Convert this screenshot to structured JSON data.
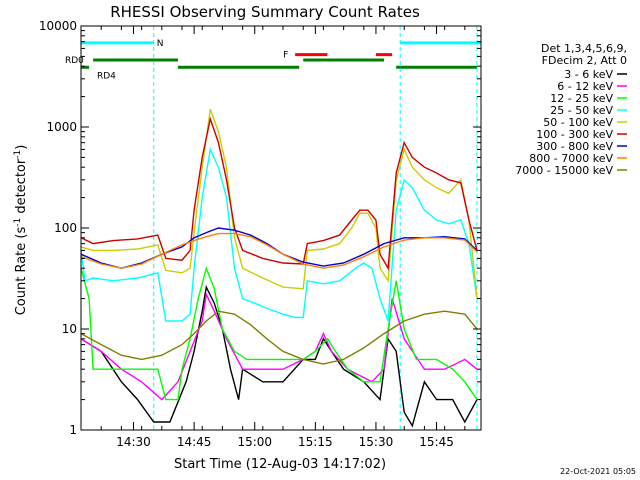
{
  "chart_data": {
    "type": "line",
    "title": "RHESSI Observing Summary Count Rates",
    "xlabel": "Start Time (12-Aug-03 14:17:02)",
    "ylabel": "Count Rate (s",
    "ylabel_sup": "-1",
    "ylabel_mid": " detector",
    "ylabel_end": ")",
    "y_scale": "log",
    "ylim": [
      1,
      10000
    ],
    "xlim_minutes": [
      0,
      99
    ],
    "x_ticks": [
      {
        "m": 13,
        "label": "14:30"
      },
      {
        "m": 28,
        "label": "14:45"
      },
      {
        "m": 43,
        "label": "15:00"
      },
      {
        "m": 58,
        "label": "15:15"
      },
      {
        "m": 73,
        "label": "15:30"
      },
      {
        "m": 88,
        "label": "15:45"
      }
    ],
    "y_ticks": [
      {
        "v": 1,
        "label": "1"
      },
      {
        "v": 10,
        "label": "10"
      },
      {
        "v": 100,
        "label": "100"
      },
      {
        "v": 1000,
        "label": "1000"
      },
      {
        "v": 10000,
        "label": "10000"
      }
    ],
    "legend_header": [
      "Det 1,3,4,5,6,9,",
      "FDecim 2, Att 0"
    ],
    "legend_position": "right",
    "series": [
      {
        "name": "3 - 6 keV",
        "color": "#000000",
        "points": [
          [
            0,
            8
          ],
          [
            5,
            6
          ],
          [
            10,
            3
          ],
          [
            14,
            2
          ],
          [
            18,
            1.2
          ],
          [
            22,
            1.2
          ],
          [
            26,
            3
          ],
          [
            28,
            6
          ],
          [
            30,
            15
          ],
          [
            31,
            26
          ],
          [
            33,
            18
          ],
          [
            35,
            10
          ],
          [
            37,
            4
          ],
          [
            39,
            2
          ],
          [
            40,
            4
          ],
          [
            45,
            3
          ],
          [
            50,
            3
          ],
          [
            55,
            5
          ],
          [
            58,
            5
          ],
          [
            60,
            8
          ],
          [
            62,
            6
          ],
          [
            65,
            4
          ],
          [
            70,
            3
          ],
          [
            74,
            2
          ],
          [
            76,
            8
          ],
          [
            78,
            6
          ],
          [
            80,
            1.5
          ],
          [
            82,
            1.1
          ],
          [
            85,
            3
          ],
          [
            88,
            2
          ],
          [
            92,
            2
          ],
          [
            95,
            1.2
          ],
          [
            98,
            2
          ]
        ]
      },
      {
        "name": "6 - 12 keV",
        "color": "#ff00ff",
        "points": [
          [
            0,
            8
          ],
          [
            5,
            6
          ],
          [
            10,
            4
          ],
          [
            15,
            3
          ],
          [
            20,
            2
          ],
          [
            24,
            3
          ],
          [
            27,
            6
          ],
          [
            30,
            12
          ],
          [
            31,
            22
          ],
          [
            33,
            15
          ],
          [
            36,
            8
          ],
          [
            40,
            4
          ],
          [
            45,
            4
          ],
          [
            50,
            4
          ],
          [
            55,
            5
          ],
          [
            58,
            6
          ],
          [
            60,
            9
          ],
          [
            62,
            6
          ],
          [
            66,
            4
          ],
          [
            72,
            3
          ],
          [
            75,
            4
          ],
          [
            77,
            20
          ],
          [
            80,
            8
          ],
          [
            85,
            4
          ],
          [
            90,
            4
          ],
          [
            95,
            5
          ],
          [
            98,
            4
          ]
        ]
      },
      {
        "name": "12 - 25 keV",
        "color": "#00ff00",
        "points": [
          [
            0,
            40
          ],
          [
            2,
            20
          ],
          [
            3,
            4
          ],
          [
            10,
            4
          ],
          [
            15,
            4
          ],
          [
            19,
            4
          ],
          [
            21,
            2
          ],
          [
            24,
            2
          ],
          [
            25,
            4
          ],
          [
            27,
            8
          ],
          [
            29,
            20
          ],
          [
            31,
            40
          ],
          [
            33,
            25
          ],
          [
            35,
            10
          ],
          [
            38,
            6
          ],
          [
            41,
            5
          ],
          [
            45,
            5
          ],
          [
            50,
            5
          ],
          [
            55,
            5
          ],
          [
            58,
            6
          ],
          [
            61,
            8
          ],
          [
            63,
            6
          ],
          [
            66,
            4
          ],
          [
            70,
            3
          ],
          [
            74,
            3
          ],
          [
            76,
            10
          ],
          [
            78,
            30
          ],
          [
            80,
            10
          ],
          [
            83,
            5
          ],
          [
            88,
            5
          ],
          [
            92,
            4
          ],
          [
            95,
            3
          ],
          [
            98,
            2
          ]
        ]
      },
      {
        "name": "25 - 50 keV",
        "color": "#00ffff",
        "points": [
          [
            0,
            60
          ],
          [
            1,
            30
          ],
          [
            3,
            32
          ],
          [
            8,
            30
          ],
          [
            14,
            32
          ],
          [
            19,
            36
          ],
          [
            21,
            12
          ],
          [
            25,
            12
          ],
          [
            27,
            14
          ],
          [
            28,
            40
          ],
          [
            30,
            200
          ],
          [
            32,
            600
          ],
          [
            34,
            400
          ],
          [
            36,
            200
          ],
          [
            38,
            40
          ],
          [
            40,
            20
          ],
          [
            43,
            18
          ],
          [
            46,
            16
          ],
          [
            50,
            14
          ],
          [
            53,
            13
          ],
          [
            55,
            13
          ],
          [
            56,
            30
          ],
          [
            60,
            28
          ],
          [
            64,
            30
          ],
          [
            68,
            40
          ],
          [
            70,
            45
          ],
          [
            72,
            40
          ],
          [
            74,
            20
          ],
          [
            76,
            12
          ],
          [
            78,
            150
          ],
          [
            80,
            300
          ],
          [
            82,
            250
          ],
          [
            85,
            150
          ],
          [
            88,
            120
          ],
          [
            91,
            110
          ],
          [
            94,
            120
          ],
          [
            96,
            70
          ],
          [
            98,
            20
          ]
        ]
      },
      {
        "name": "50 - 100 keV",
        "color": "#cccc00",
        "points": [
          [
            0,
            65
          ],
          [
            3,
            60
          ],
          [
            8,
            60
          ],
          [
            14,
            62
          ],
          [
            19,
            68
          ],
          [
            21,
            38
          ],
          [
            25,
            36
          ],
          [
            27,
            40
          ],
          [
            28,
            90
          ],
          [
            30,
            400
          ],
          [
            32,
            1500
          ],
          [
            34,
            900
          ],
          [
            36,
            400
          ],
          [
            38,
            80
          ],
          [
            40,
            40
          ],
          [
            45,
            32
          ],
          [
            50,
            26
          ],
          [
            55,
            25
          ],
          [
            56,
            60
          ],
          [
            60,
            62
          ],
          [
            64,
            70
          ],
          [
            67,
            100
          ],
          [
            69,
            140
          ],
          [
            71,
            140
          ],
          [
            73,
            100
          ],
          [
            74,
            40
          ],
          [
            76,
            30
          ],
          [
            78,
            300
          ],
          [
            80,
            600
          ],
          [
            82,
            400
          ],
          [
            85,
            300
          ],
          [
            88,
            250
          ],
          [
            91,
            220
          ],
          [
            94,
            300
          ],
          [
            96,
            120
          ],
          [
            98,
            20
          ]
        ]
      },
      {
        "name": "100 - 300 keV",
        "color": "#cc0000",
        "points": [
          [
            0,
            80
          ],
          [
            3,
            70
          ],
          [
            8,
            75
          ],
          [
            14,
            78
          ],
          [
            19,
            85
          ],
          [
            21,
            50
          ],
          [
            25,
            48
          ],
          [
            27,
            60
          ],
          [
            28,
            150
          ],
          [
            30,
            500
          ],
          [
            32,
            1200
          ],
          [
            34,
            700
          ],
          [
            36,
            300
          ],
          [
            38,
            100
          ],
          [
            40,
            60
          ],
          [
            45,
            50
          ],
          [
            50,
            45
          ],
          [
            55,
            44
          ],
          [
            56,
            70
          ],
          [
            60,
            75
          ],
          [
            64,
            85
          ],
          [
            67,
            120
          ],
          [
            69,
            150
          ],
          [
            71,
            150
          ],
          [
            73,
            120
          ],
          [
            74,
            55
          ],
          [
            76,
            40
          ],
          [
            78,
            350
          ],
          [
            80,
            700
          ],
          [
            82,
            500
          ],
          [
            85,
            400
          ],
          [
            88,
            350
          ],
          [
            91,
            300
          ],
          [
            94,
            280
          ],
          [
            96,
            120
          ],
          [
            98,
            60
          ]
        ]
      },
      {
        "name": "300 - 800 keV",
        "color": "#0000cc",
        "points": [
          [
            0,
            55
          ],
          [
            5,
            45
          ],
          [
            10,
            40
          ],
          [
            15,
            45
          ],
          [
            20,
            55
          ],
          [
            25,
            65
          ],
          [
            28,
            80
          ],
          [
            31,
            90
          ],
          [
            34,
            100
          ],
          [
            38,
            95
          ],
          [
            42,
            85
          ],
          [
            46,
            70
          ],
          [
            50,
            55
          ],
          [
            55,
            46
          ],
          [
            60,
            42
          ],
          [
            65,
            45
          ],
          [
            70,
            55
          ],
          [
            75,
            70
          ],
          [
            80,
            80
          ],
          [
            85,
            80
          ],
          [
            90,
            82
          ],
          [
            95,
            78
          ],
          [
            98,
            60
          ]
        ]
      },
      {
        "name": "800 - 7000 keV",
        "color": "#ff8000",
        "points": [
          [
            0,
            52
          ],
          [
            5,
            44
          ],
          [
            10,
            40
          ],
          [
            15,
            44
          ],
          [
            20,
            55
          ],
          [
            25,
            68
          ],
          [
            28,
            75
          ],
          [
            31,
            82
          ],
          [
            34,
            88
          ],
          [
            38,
            88
          ],
          [
            42,
            82
          ],
          [
            46,
            68
          ],
          [
            50,
            55
          ],
          [
            55,
            44
          ],
          [
            60,
            40
          ],
          [
            65,
            43
          ],
          [
            70,
            52
          ],
          [
            75,
            65
          ],
          [
            80,
            76
          ],
          [
            85,
            80
          ],
          [
            90,
            80
          ],
          [
            95,
            76
          ],
          [
            98,
            58
          ]
        ]
      },
      {
        "name": "7000 - 15000 keV",
        "color": "#808000",
        "points": [
          [
            0,
            9
          ],
          [
            5,
            7
          ],
          [
            10,
            5.5
          ],
          [
            15,
            5
          ],
          [
            20,
            5.5
          ],
          [
            25,
            7
          ],
          [
            28,
            9
          ],
          [
            31,
            12
          ],
          [
            34,
            15
          ],
          [
            38,
            14
          ],
          [
            42,
            11
          ],
          [
            46,
            8
          ],
          [
            50,
            6
          ],
          [
            55,
            5
          ],
          [
            60,
            4.5
          ],
          [
            65,
            5
          ],
          [
            70,
            6.5
          ],
          [
            75,
            9
          ],
          [
            80,
            12
          ],
          [
            85,
            14
          ],
          [
            90,
            15
          ],
          [
            95,
            14
          ],
          [
            98,
            10
          ]
        ]
      }
    ],
    "annotations": [
      {
        "label": "N",
        "color": "#00ffff",
        "segments": [
          [
            0,
            18
          ],
          [
            79,
            99
          ]
        ],
        "level": 6800
      },
      {
        "label": "F",
        "color": "#ff0000",
        "segments": [
          [
            53,
            61
          ],
          [
            73,
            77
          ]
        ],
        "level": 5200
      },
      {
        "label": "RD0",
        "color": "#008000",
        "segments": [
          [
            3,
            24
          ],
          [
            55,
            75
          ]
        ],
        "level": 4600
      },
      {
        "label": "RD4",
        "color": "#008000",
        "segments": [
          [
            0,
            2
          ],
          [
            24,
            54
          ],
          [
            78,
            98
          ]
        ],
        "level": 3900
      }
    ],
    "vlines_minutes": [
      0,
      18,
      79,
      98
    ]
  },
  "footer": {
    "date": "22-Oct-2021 05:05"
  }
}
